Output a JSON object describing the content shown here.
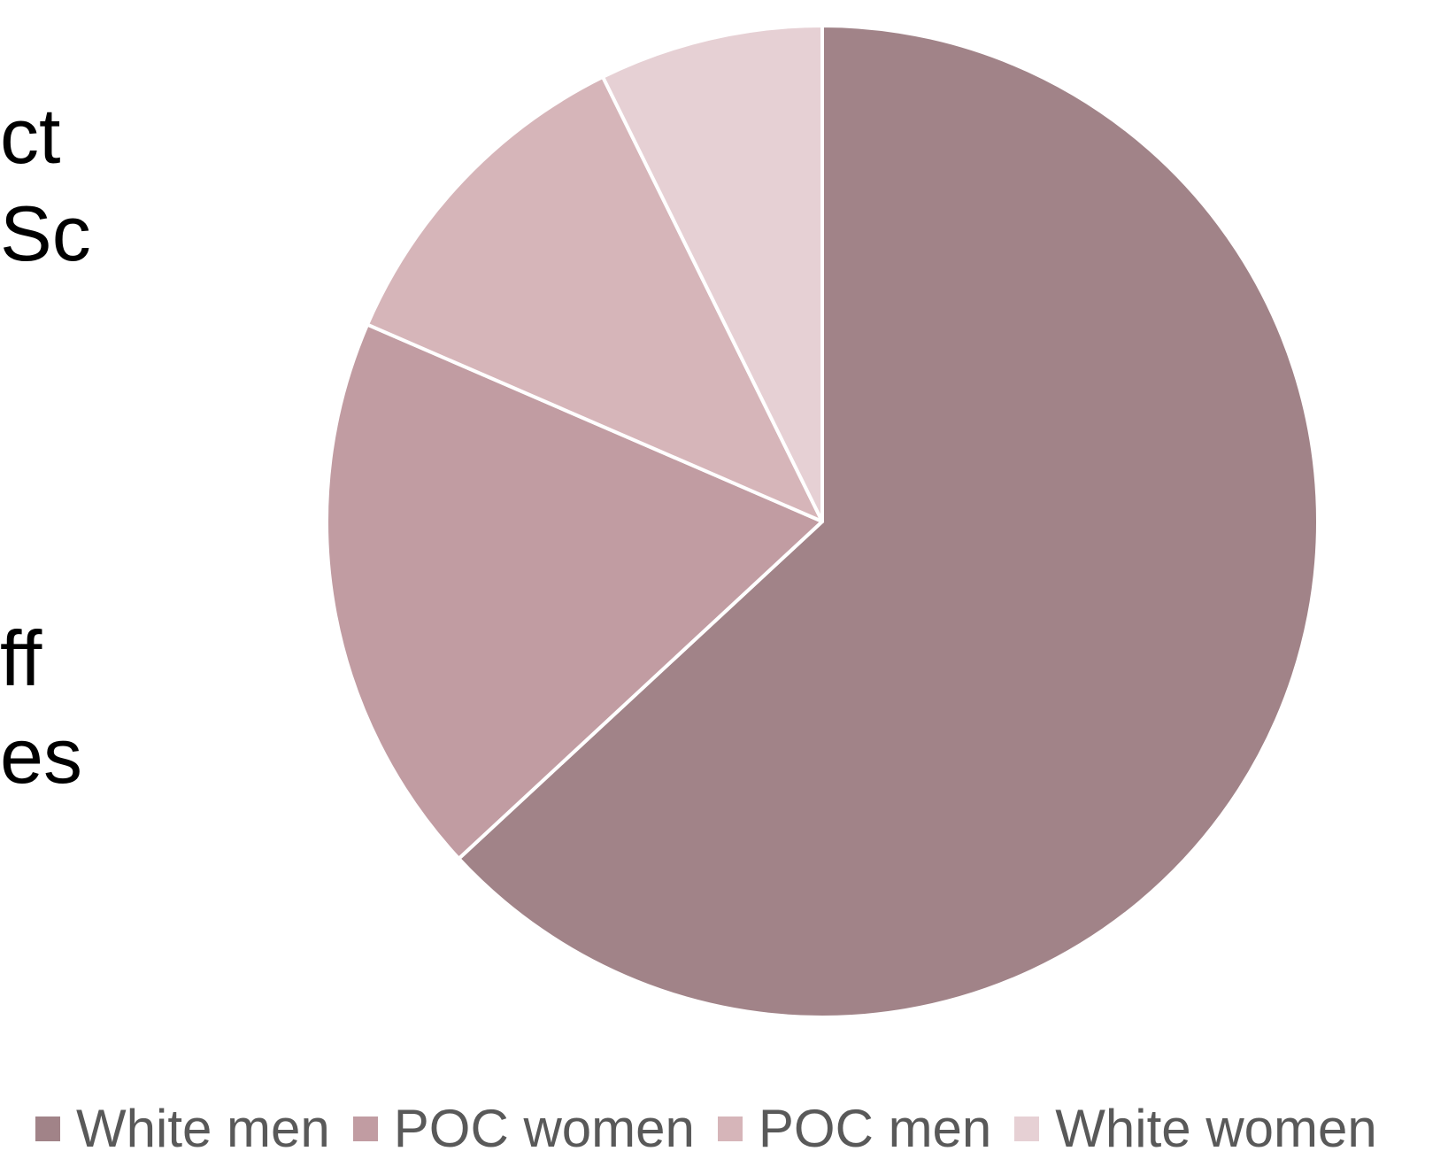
{
  "side_text": [
    "ct",
    "Sc",
    "ff",
    "es"
  ],
  "colors": {
    "white_men": "#a18388",
    "poc_women": "#c19ca2",
    "poc_men": "#d6b5b9",
    "white_women": "#e6d0d4",
    "slice_border": "#ffffff",
    "legend_text": "#595959"
  },
  "chart_data": {
    "type": "pie",
    "title": "",
    "start_angle_deg": 0,
    "direction": "clockwise",
    "legend_position": "bottom",
    "slices": [
      {
        "label": "White men",
        "value": 63.1,
        "color": "#a18388"
      },
      {
        "label": "POC women",
        "value": 18.4,
        "color": "#c19ca2"
      },
      {
        "label": "POC men",
        "value": 11.2,
        "color": "#d6b5b9"
      },
      {
        "label": "White women",
        "value": 7.3,
        "color": "#e6d0d4"
      }
    ]
  }
}
